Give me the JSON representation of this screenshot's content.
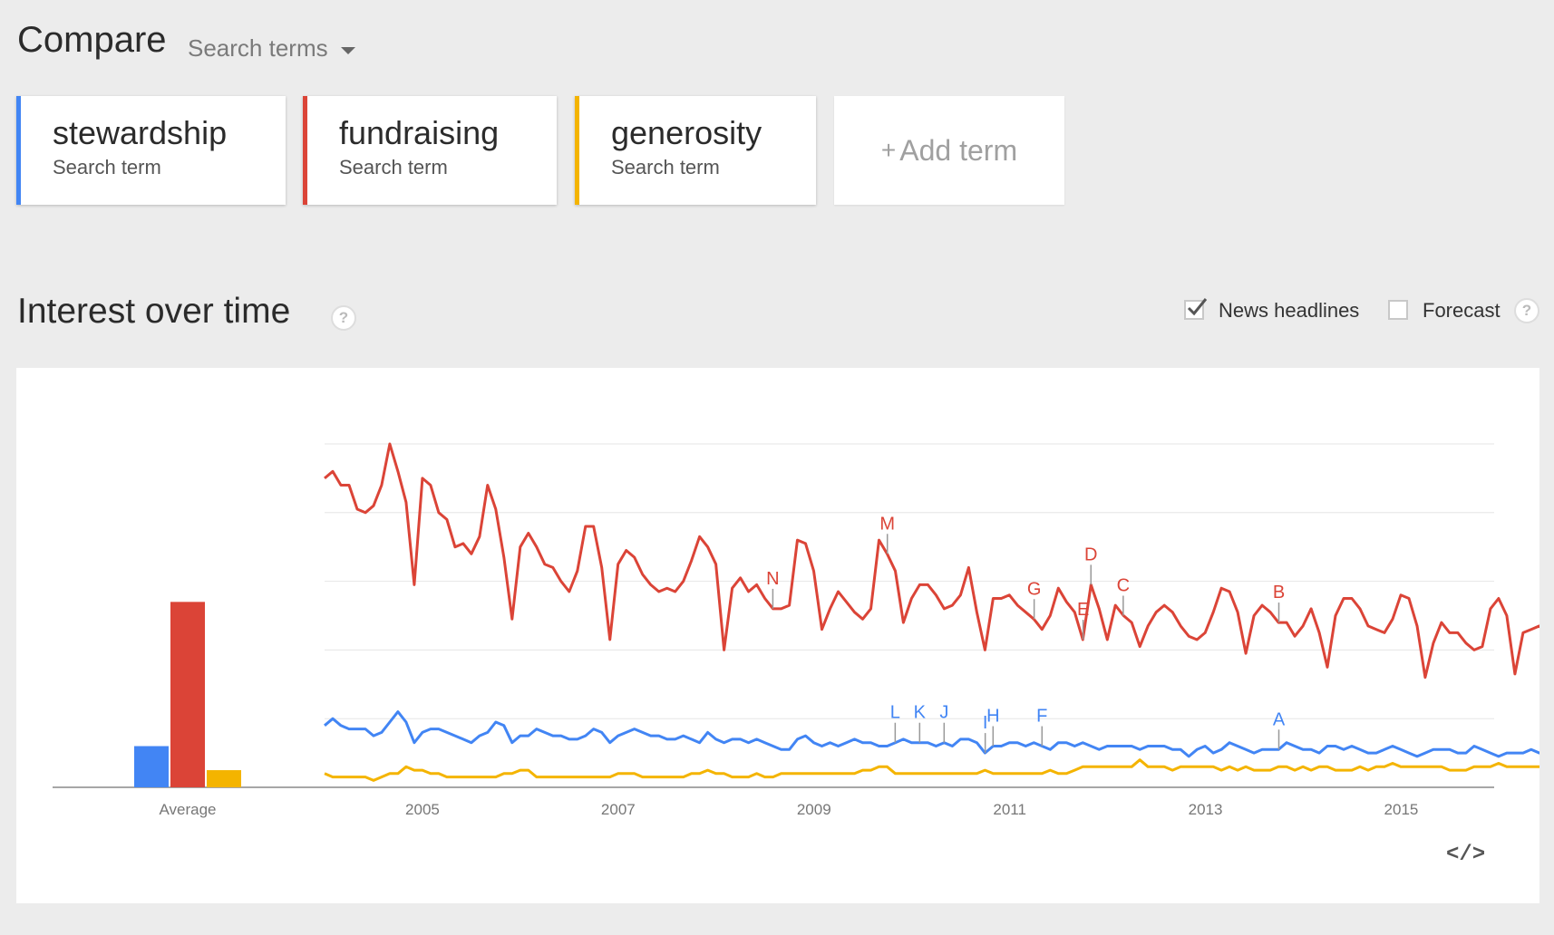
{
  "header": {
    "title": "Compare",
    "search_terms_label": "Search terms"
  },
  "terms": [
    {
      "name": "stewardship",
      "subtitle": "Search term",
      "color": "#4285f4"
    },
    {
      "name": "fundraising",
      "subtitle": "Search term",
      "color": "#db4437"
    },
    {
      "name": "generosity",
      "subtitle": "Search term",
      "color": "#f4b400"
    }
  ],
  "add_term": {
    "plus": "+",
    "label": "Add term"
  },
  "section": {
    "title": "Interest over time",
    "help_glyph": "?",
    "news_headlines_label": "News headlines",
    "news_headlines_checked": true,
    "forecast_label": "Forecast",
    "forecast_checked": false,
    "embed_glyph": "</>"
  },
  "chart_data": {
    "type": "line",
    "x_start": 2004.0,
    "x_end": 2015.95,
    "x_step": 0.0833,
    "xticks": [
      "2005",
      "2007",
      "2009",
      "2011",
      "2013",
      "2015"
    ],
    "xtick_values": [
      2005,
      2007,
      2009,
      2011,
      2013,
      2015
    ],
    "ylim": [
      0,
      100
    ],
    "grid": true,
    "average": {
      "label": "Average",
      "values": [
        12,
        54,
        5
      ]
    },
    "series": [
      {
        "name": "stewardship",
        "color": "#4285f4",
        "values": [
          18,
          20,
          18,
          17,
          17,
          17,
          15,
          16,
          19,
          22,
          19,
          13,
          16,
          17,
          17,
          16,
          15,
          14,
          13,
          15,
          16,
          19,
          18,
          13,
          15,
          15,
          17,
          16,
          15,
          15,
          14,
          14,
          15,
          17,
          16,
          13,
          15,
          16,
          17,
          16,
          15,
          15,
          14,
          14,
          15,
          14,
          13,
          16,
          14,
          13,
          14,
          14,
          13,
          14,
          13,
          12,
          11,
          11,
          14,
          15,
          13,
          12,
          13,
          12,
          13,
          14,
          13,
          13,
          12,
          12,
          13,
          14,
          13,
          13,
          13,
          12,
          13,
          12,
          14,
          14,
          13,
          10,
          12,
          12,
          13,
          13,
          12,
          13,
          12,
          11,
          13,
          13,
          12,
          13,
          12,
          11,
          12,
          12,
          12,
          12,
          11,
          12,
          12,
          12,
          11,
          11,
          9,
          11,
          12,
          10,
          11,
          13,
          12,
          11,
          10,
          11,
          11,
          11,
          13,
          12,
          11,
          11,
          10,
          12,
          12,
          11,
          12,
          11,
          10,
          10,
          11,
          12,
          11,
          10,
          9,
          10,
          11,
          11,
          11,
          10,
          10,
          12,
          11,
          10,
          9,
          10,
          10,
          10,
          11,
          10,
          10,
          9,
          10,
          11,
          10,
          9,
          10,
          10,
          10,
          10,
          11,
          10,
          9,
          9,
          10,
          10,
          11,
          11,
          10,
          12,
          14
        ]
      },
      {
        "name": "fundraising",
        "color": "#db4437",
        "values": [
          90,
          92,
          88,
          88,
          81,
          80,
          82,
          88,
          100,
          92,
          83,
          59,
          90,
          88,
          80,
          78,
          70,
          71,
          68,
          73,
          88,
          81,
          67,
          49,
          70,
          74,
          70,
          65,
          64,
          60,
          57,
          63,
          76,
          76,
          64,
          43,
          65,
          69,
          67,
          62,
          59,
          57,
          58,
          57,
          60,
          66,
          73,
          70,
          65,
          40,
          58,
          61,
          57,
          59,
          55,
          52,
          52,
          53,
          72,
          71,
          63,
          46,
          52,
          57,
          54,
          51,
          49,
          52,
          72,
          68,
          63,
          48,
          55,
          59,
          59,
          56,
          52,
          53,
          56,
          64,
          51,
          40,
          55,
          55,
          56,
          53,
          51,
          49,
          46,
          50,
          58,
          54,
          51,
          43,
          59,
          52,
          43,
          53,
          50,
          48,
          41,
          47,
          51,
          53,
          51,
          47,
          44,
          43,
          45,
          51,
          58,
          57,
          51,
          39,
          50,
          53,
          51,
          48,
          48,
          44,
          47,
          52,
          45,
          35,
          50,
          55,
          55,
          52,
          47,
          46,
          45,
          49,
          56,
          55,
          47,
          32,
          42,
          48,
          45,
          45,
          42,
          40,
          41,
          52,
          55,
          50,
          33,
          45,
          46,
          47,
          44,
          42,
          41,
          42,
          45,
          51,
          50,
          39,
          31,
          41,
          41,
          44,
          43,
          40,
          37,
          35,
          36,
          37,
          48,
          46,
          43,
          46
        ]
      },
      {
        "name": "generosity",
        "color": "#f4b400",
        "values": [
          4,
          3,
          3,
          3,
          3,
          3,
          2,
          3,
          4,
          4,
          6,
          5,
          5,
          4,
          4,
          3,
          3,
          3,
          3,
          3,
          3,
          3,
          4,
          4,
          5,
          5,
          3,
          3,
          3,
          3,
          3,
          3,
          3,
          3,
          3,
          3,
          4,
          4,
          4,
          3,
          3,
          3,
          3,
          3,
          3,
          4,
          4,
          5,
          4,
          4,
          3,
          3,
          3,
          4,
          3,
          3,
          4,
          4,
          4,
          4,
          4,
          4,
          4,
          4,
          4,
          4,
          5,
          5,
          6,
          6,
          4,
          4,
          4,
          4,
          4,
          4,
          4,
          4,
          4,
          4,
          4,
          5,
          4,
          4,
          4,
          4,
          4,
          4,
          4,
          5,
          4,
          4,
          5,
          6,
          6,
          6,
          6,
          6,
          6,
          6,
          8,
          6,
          6,
          6,
          5,
          6,
          6,
          6,
          6,
          6,
          5,
          6,
          5,
          6,
          5,
          5,
          5,
          6,
          6,
          5,
          6,
          5,
          6,
          6,
          5,
          5,
          5,
          6,
          5,
          6,
          6,
          7,
          6,
          6,
          6,
          6,
          6,
          6,
          5,
          5,
          5,
          6,
          6,
          6,
          7,
          6,
          6,
          6,
          6,
          6,
          6,
          5,
          5,
          5,
          6,
          6,
          6,
          6,
          6,
          6,
          6,
          6,
          6,
          6,
          5,
          5,
          6,
          6,
          6,
          6,
          8,
          11
        ]
      }
    ],
    "annotations": [
      {
        "label": "A",
        "x": 2013.75,
        "series": "stewardship"
      },
      {
        "label": "B",
        "x": 2013.75,
        "series": "fundraising"
      },
      {
        "label": "C",
        "x": 2012.16,
        "series": "fundraising"
      },
      {
        "label": "D",
        "x": 2011.83,
        "series": "fundraising"
      },
      {
        "label": "E",
        "x": 2011.75,
        "series": "fundraising"
      },
      {
        "label": "F",
        "x": 2011.33,
        "series": "stewardship"
      },
      {
        "label": "G",
        "x": 2011.25,
        "series": "fundraising"
      },
      {
        "label": "H",
        "x": 2010.83,
        "series": "stewardship"
      },
      {
        "label": "I",
        "x": 2010.75,
        "series": "stewardship"
      },
      {
        "label": "J",
        "x": 2010.33,
        "series": "stewardship"
      },
      {
        "label": "K",
        "x": 2010.08,
        "series": "stewardship"
      },
      {
        "label": "L",
        "x": 2009.83,
        "series": "stewardship"
      },
      {
        "label": "M",
        "x": 2009.75,
        "series": "fundraising"
      },
      {
        "label": "N",
        "x": 2008.58,
        "series": "fundraising"
      }
    ]
  }
}
